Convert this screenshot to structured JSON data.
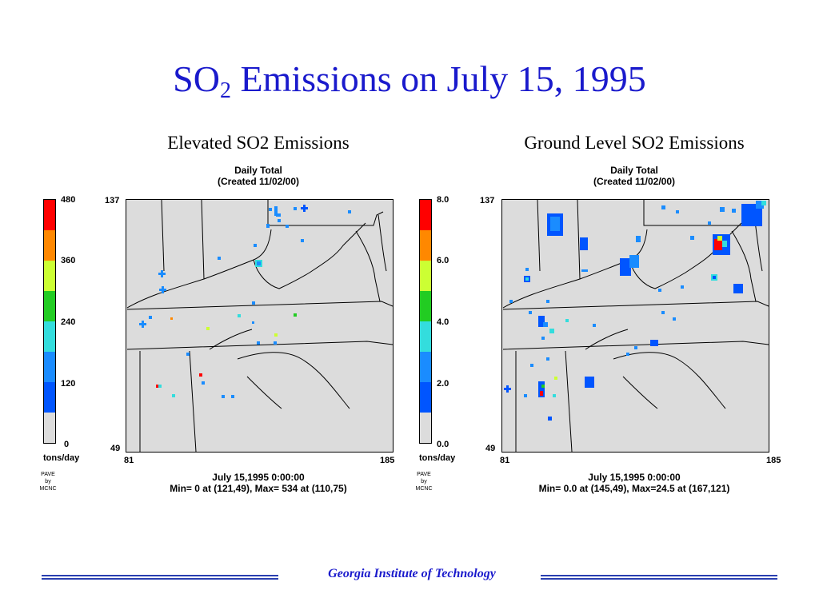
{
  "slide": {
    "title_prefix": "SO",
    "title_sub": "2",
    "title_rest": " Emissions on July 15, 1995",
    "footer": "Georgia Institute of Technology"
  },
  "colors": {
    "title": "#1a1acc",
    "map_bg": "#dcdcdc",
    "scale": [
      "#dcdcdc",
      "#0055ff",
      "#1a8cff",
      "#33dddd",
      "#22cc22",
      "#ccff33",
      "#ff8800",
      "#ff0000"
    ]
  },
  "panels": [
    {
      "title": "Elevated SO2 Emissions",
      "subtitle1": "Daily Total",
      "subtitle2": "(Created 11/02/00)",
      "y_top": "137",
      "y_bottom": "49",
      "x_left": "81",
      "x_right": "185",
      "scale_labels": [
        "480",
        "360",
        "240",
        "120",
        "0"
      ],
      "unit": "tons/day",
      "credit": [
        "PAVE",
        "by",
        "MCNC"
      ],
      "date_line": "July 15,1995 0:00:00",
      "minmax_line": "Min=   0 at (121,49), Max= 534 at (110,75)"
    },
    {
      "title": "Ground Level SO2 Emissions",
      "subtitle1": "Daily Total",
      "subtitle2": "(Created 11/02/00)",
      "y_top": "137",
      "y_bottom": "49",
      "x_left": "81",
      "x_right": "185",
      "scale_labels": [
        "8.0",
        "6.0",
        "4.0",
        "2.0",
        "0.0"
      ],
      "unit": "tons/day",
      "credit": [
        "PAVE",
        "by",
        "MCNC"
      ],
      "date_line": "July 15,1995 0:00:00",
      "minmax_line": "Min= 0.0 at (145,49), Max=24.5 at (167,121)"
    }
  ]
}
